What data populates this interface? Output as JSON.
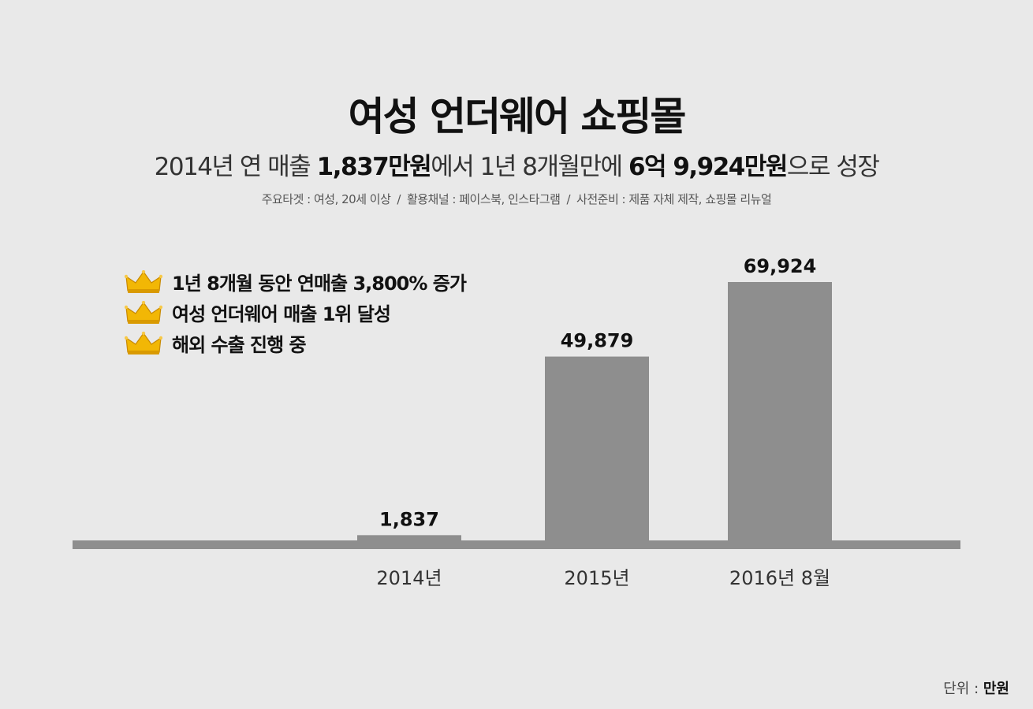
{
  "header": {
    "title": "여성 언더웨어 쇼핑몰",
    "subtitle": {
      "p1": "2014년 연 매출 ",
      "b1": "1,837만원",
      "p2": "에서 1년 8개월만에 ",
      "b2": "6억 9,924만원",
      "p3": "으로 성장"
    },
    "info": [
      "주요타겟 : 여성, 20세 이상",
      "활용채널 : 페이스북, 인스타그램",
      "사전준비 : 제품 자체 제작, 쇼핑몰 리뉴얼"
    ],
    "info_separator": "/"
  },
  "highlights": [
    "1년 8개월 동안 연매출 3,800% 증가",
    "여성 언더웨어 매출 1위 달성",
    "해외 수출 진행 중"
  ],
  "unit": {
    "label": "단위 : ",
    "value": "만원"
  },
  "colors": {
    "background": "#e9e9e9",
    "bar": "#8e8e8e",
    "crown": "#f2b705"
  },
  "chart_data": {
    "type": "bar",
    "categories": [
      "2014년",
      "2015년",
      "2016년 8월"
    ],
    "values": [
      1837,
      49879,
      69924
    ],
    "value_labels": [
      "1,837",
      "49,879",
      "69,924"
    ],
    "ylim": [
      0,
      69924
    ],
    "grid": false,
    "legend": "none"
  }
}
